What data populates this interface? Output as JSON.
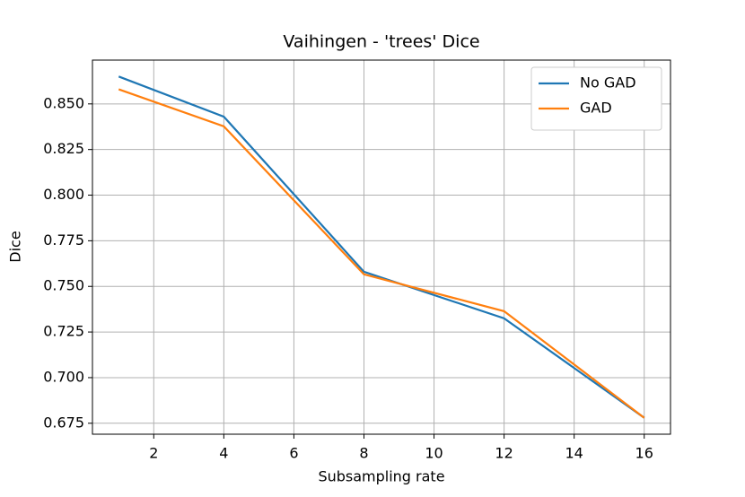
{
  "chart_data": {
    "type": "line",
    "title": "Vaihingen - 'trees' Dice",
    "x_label": "Subsampling rate",
    "y_label": "Dice",
    "x": [
      1,
      4,
      8,
      12,
      16
    ],
    "series": [
      {
        "name": "No GAD",
        "color": "#1f77b4",
        "values": [
          0.865,
          0.843,
          0.758,
          0.7325,
          0.678
        ]
      },
      {
        "name": "GAD",
        "color": "#ff7f0e",
        "values": [
          0.858,
          0.8377,
          0.7566,
          0.7364,
          0.678
        ]
      }
    ],
    "xlim": [
      0.25,
      16.75
    ],
    "ylim": [
      0.669,
      0.874
    ],
    "xticks": [
      2,
      4,
      6,
      8,
      10,
      12,
      14,
      16
    ],
    "yticks": [
      {
        "value": 0.675,
        "label": "0.675"
      },
      {
        "value": 0.7,
        "label": "0.700"
      },
      {
        "value": 0.725,
        "label": "0.725"
      },
      {
        "value": 0.75,
        "label": "0.750"
      },
      {
        "value": 0.775,
        "label": "0.775"
      },
      {
        "value": 0.8,
        "label": "0.800"
      },
      {
        "value": 0.825,
        "label": "0.825"
      },
      {
        "value": 0.85,
        "label": "0.850"
      }
    ],
    "grid": true,
    "legend": "upper right"
  }
}
